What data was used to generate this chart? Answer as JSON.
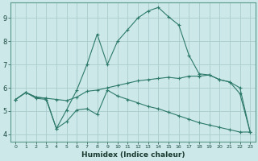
{
  "xlabel": "Humidex (Indice chaleur)",
  "bg_color": "#cce8e8",
  "grid_color": "#aacccc",
  "line_color": "#2d7a6a",
  "x_ticks": [
    0,
    1,
    2,
    3,
    4,
    5,
    6,
    7,
    8,
    9,
    10,
    11,
    12,
    13,
    14,
    15,
    16,
    17,
    18,
    19,
    20,
    21,
    22,
    23
  ],
  "y_ticks": [
    4,
    5,
    6,
    7,
    8,
    9
  ],
  "xlim": [
    -0.5,
    23.5
  ],
  "ylim": [
    3.7,
    9.65
  ],
  "line_upper": {
    "x": [
      0,
      1,
      2,
      3,
      4,
      5,
      6,
      7,
      8,
      9,
      10,
      11,
      12,
      13,
      14,
      15,
      16,
      17,
      18,
      19,
      20,
      21,
      22,
      23
    ],
    "y": [
      5.5,
      5.8,
      5.6,
      5.55,
      4.25,
      5.05,
      5.9,
      7.0,
      8.3,
      7.0,
      8.0,
      8.5,
      9.0,
      9.3,
      9.45,
      9.05,
      8.7,
      7.4,
      6.6,
      6.55,
      6.35,
      6.25,
      5.75,
      4.1
    ]
  },
  "line_mid": {
    "x": [
      0,
      1,
      2,
      3,
      4,
      5,
      6,
      7,
      8,
      9,
      10,
      11,
      12,
      13,
      14,
      15,
      16,
      17,
      18,
      19,
      20,
      21,
      22,
      23
    ],
    "y": [
      5.5,
      5.8,
      5.6,
      5.55,
      5.5,
      5.45,
      5.6,
      5.85,
      5.9,
      6.0,
      6.1,
      6.2,
      6.3,
      6.35,
      6.4,
      6.45,
      6.4,
      6.5,
      6.5,
      6.55,
      6.35,
      6.25,
      6.0,
      4.1
    ]
  },
  "line_lower": {
    "x": [
      0,
      1,
      2,
      3,
      4,
      5,
      6,
      7,
      8,
      9,
      10,
      11,
      12,
      13,
      14,
      15,
      16,
      17,
      18,
      19,
      20,
      21,
      22,
      23
    ],
    "y": [
      5.5,
      5.8,
      5.55,
      5.5,
      4.25,
      4.55,
      5.05,
      5.1,
      4.85,
      5.9,
      5.65,
      5.5,
      5.35,
      5.2,
      5.1,
      4.95,
      4.8,
      4.65,
      4.5,
      4.4,
      4.3,
      4.2,
      4.1,
      4.1
    ]
  }
}
